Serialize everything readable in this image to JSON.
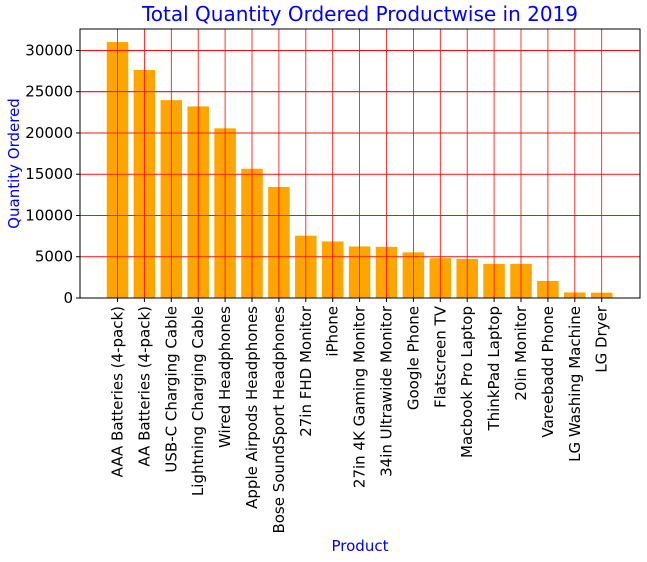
{
  "chart_data": {
    "type": "bar",
    "title": "Total Quantity Ordered Productwise in 2019",
    "xlabel": "Product",
    "ylabel": "Quantity Ordered",
    "categories": [
      "AAA Batteries (4-pack)",
      "AA Batteries (4-pack)",
      "USB-C Charging Cable",
      "Lightning Charging Cable",
      "Wired Headphones",
      "Apple Airpods Headphones",
      "Bose SoundSport Headphones",
      "27in FHD Monitor",
      "iPhone",
      "27in 4K Gaming Monitor",
      "34in Ultrawide Monitor",
      "Google Phone",
      "Flatscreen TV",
      "Macbook Pro Laptop",
      "ThinkPad Laptop",
      "20in Monitor",
      "Vareebadd Phone",
      "LG Washing Machine",
      "LG Dryer"
    ],
    "values": [
      31017,
      27635,
      23975,
      23217,
      20557,
      15661,
      13457,
      7550,
      6849,
      6244,
      6199,
      5532,
      4819,
      4728,
      4130,
      4129,
      2068,
      666,
      646
    ],
    "ylim": [
      0,
      32600
    ],
    "yticks": [
      0,
      5000,
      10000,
      15000,
      20000,
      25000,
      30000
    ],
    "grid": true,
    "colors": {
      "bar": "#ffa500",
      "grid": "#ff0000",
      "title": "#0000ff",
      "axis_label": "#0000ff"
    }
  }
}
